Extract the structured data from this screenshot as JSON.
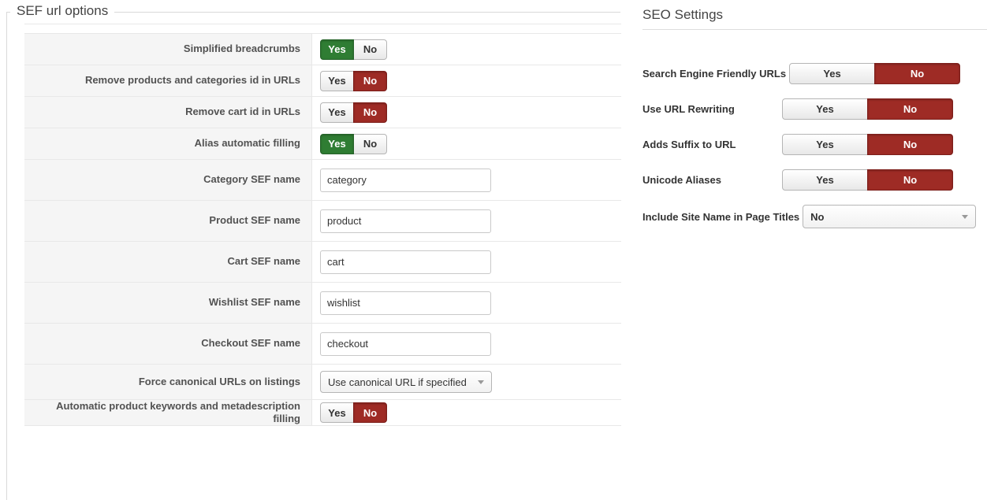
{
  "colors": {
    "yes_selected_bg": "#2f7d33",
    "yes_selected_border": "#26632a",
    "no_selected_bg": "#9e2b25",
    "no_selected_border": "#7d1f1b"
  },
  "left_panel": {
    "legend": "SEF url options",
    "rows": [
      {
        "label": "Simplified breadcrumbs",
        "control": {
          "type": "toggle",
          "options": [
            "Yes",
            "No"
          ],
          "selected": "Yes"
        }
      },
      {
        "label": "Remove products and categories id in URLs",
        "control": {
          "type": "toggle",
          "options": [
            "Yes",
            "No"
          ],
          "selected": "No"
        }
      },
      {
        "label": "Remove cart id in URLs",
        "control": {
          "type": "toggle",
          "options": [
            "Yes",
            "No"
          ],
          "selected": "No"
        }
      },
      {
        "label": "Alias automatic filling",
        "control": {
          "type": "toggle",
          "options": [
            "Yes",
            "No"
          ],
          "selected": "Yes"
        }
      },
      {
        "label": "Category SEF name",
        "control": {
          "type": "text",
          "value": "category"
        }
      },
      {
        "label": "Product SEF name",
        "control": {
          "type": "text",
          "value": "product"
        }
      },
      {
        "label": "Cart SEF name",
        "control": {
          "type": "text",
          "value": "cart"
        }
      },
      {
        "label": "Wishlist SEF name",
        "control": {
          "type": "text",
          "value": "wishlist"
        }
      },
      {
        "label": "Checkout SEF name",
        "control": {
          "type": "text",
          "value": "checkout"
        }
      },
      {
        "label": "Force canonical URLs on listings",
        "control": {
          "type": "select",
          "value": "Use canonical URL if specified"
        }
      },
      {
        "label": "Automatic product keywords and metadescription filling",
        "control": {
          "type": "toggle",
          "options": [
            "Yes",
            "No"
          ],
          "selected": "No"
        }
      }
    ]
  },
  "right_panel": {
    "heading": "SEO Settings",
    "rows": [
      {
        "label": "Search Engine Friendly URLs",
        "control": {
          "type": "toggle",
          "options": [
            "Yes",
            "No"
          ],
          "selected": "No"
        }
      },
      {
        "label": "Use URL Rewriting",
        "control": {
          "type": "toggle",
          "options": [
            "Yes",
            "No"
          ],
          "selected": "No"
        }
      },
      {
        "label": "Adds Suffix to URL",
        "control": {
          "type": "toggle",
          "options": [
            "Yes",
            "No"
          ],
          "selected": "No"
        }
      },
      {
        "label": "Unicode Aliases",
        "control": {
          "type": "toggle",
          "options": [
            "Yes",
            "No"
          ],
          "selected": "No"
        }
      },
      {
        "label": "Include Site Name in Page Titles",
        "control": {
          "type": "select",
          "value": "No"
        }
      }
    ]
  }
}
